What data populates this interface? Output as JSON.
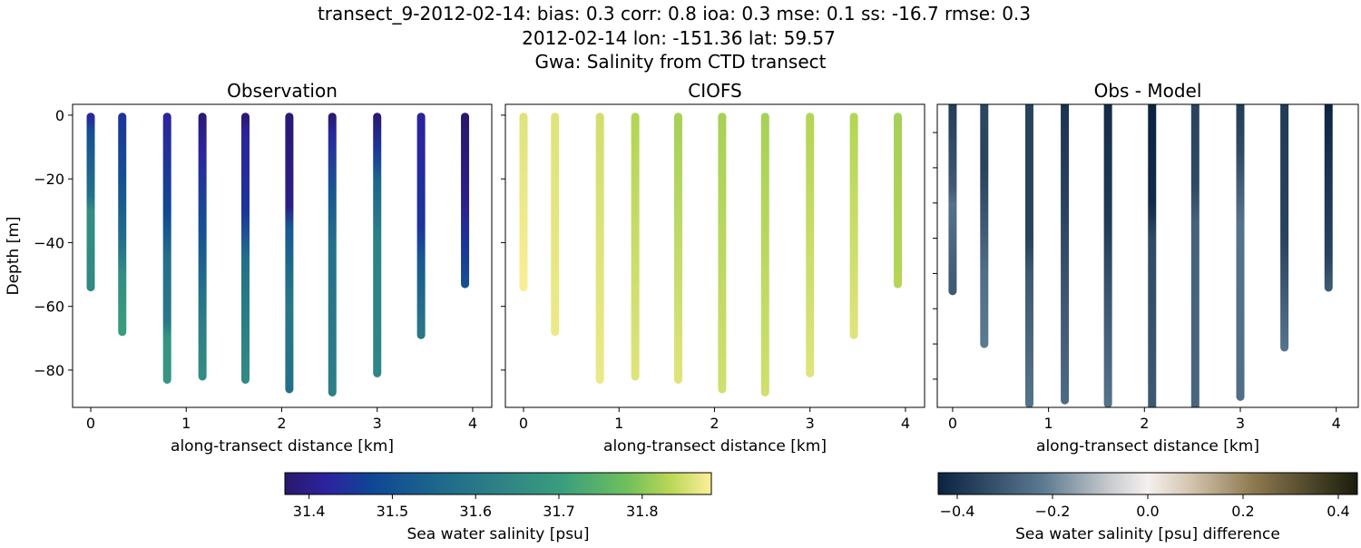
{
  "title_lines": [
    "transect_9-2012-02-14: bias: 0.3  corr: 0.8  ioa: 0.3  mse: 0.1  ss: -16.7  rmse: 0.3",
    "2012-02-14 lon: -151.36 lat: 59.57",
    "Gwa: Salinity from CTD transect"
  ],
  "chart_data": [
    {
      "type": "scatter",
      "title": "Observation",
      "xlabel": "along-transect distance [km]",
      "ylabel": "Depth [m]",
      "xlim": [
        -0.19,
        4.2
      ],
      "ylim": [
        -91.7,
        3.4
      ],
      "xticks": [
        0,
        1,
        2,
        3,
        4
      ],
      "yticks": [
        0,
        -20,
        -40,
        -60,
        -80
      ],
      "colormap": "haline",
      "stations": [
        {
          "x": 0.0,
          "max_depth": 54,
          "profile": [
            [
              0,
              31.43
            ],
            [
              5,
              31.5
            ],
            [
              25,
              31.58
            ],
            [
              30,
              31.66
            ],
            [
              54,
              31.65
            ]
          ]
        },
        {
          "x": 0.33,
          "max_depth": 68,
          "profile": [
            [
              0,
              31.45
            ],
            [
              20,
              31.5
            ],
            [
              40,
              31.58
            ],
            [
              50,
              31.66
            ],
            [
              68,
              31.7
            ]
          ]
        },
        {
          "x": 0.8,
          "max_depth": 83,
          "profile": [
            [
              0,
              31.42
            ],
            [
              30,
              31.48
            ],
            [
              45,
              31.58
            ],
            [
              65,
              31.6
            ],
            [
              70,
              31.68
            ],
            [
              83,
              31.68
            ]
          ]
        },
        {
          "x": 1.17,
          "max_depth": 82,
          "profile": [
            [
              0,
              31.38
            ],
            [
              10,
              31.42
            ],
            [
              35,
              31.5
            ],
            [
              60,
              31.6
            ],
            [
              82,
              31.66
            ]
          ]
        },
        {
          "x": 1.62,
          "max_depth": 83,
          "profile": [
            [
              0,
              31.38
            ],
            [
              5,
              31.42
            ],
            [
              30,
              31.45
            ],
            [
              45,
              31.58
            ],
            [
              83,
              31.65
            ]
          ]
        },
        {
          "x": 2.08,
          "max_depth": 86,
          "profile": [
            [
              0,
              31.38
            ],
            [
              28,
              31.4
            ],
            [
              35,
              31.52
            ],
            [
              60,
              31.6
            ],
            [
              86,
              31.58
            ]
          ]
        },
        {
          "x": 2.53,
          "max_depth": 87,
          "profile": [
            [
              0,
              31.38
            ],
            [
              5,
              31.43
            ],
            [
              25,
              31.52
            ],
            [
              40,
              31.58
            ],
            [
              87,
              31.62
            ]
          ]
        },
        {
          "x": 3.0,
          "max_depth": 81,
          "profile": [
            [
              0,
              31.38
            ],
            [
              10,
              31.45
            ],
            [
              20,
              31.55
            ],
            [
              40,
              31.63
            ],
            [
              81,
              31.64
            ]
          ]
        },
        {
          "x": 3.46,
          "max_depth": 69,
          "profile": [
            [
              0,
              31.42
            ],
            [
              35,
              31.45
            ],
            [
              45,
              31.52
            ],
            [
              69,
              31.6
            ]
          ]
        },
        {
          "x": 3.92,
          "max_depth": 53,
          "profile": [
            [
              0,
              31.37
            ],
            [
              25,
              31.4
            ],
            [
              40,
              31.45
            ],
            [
              53,
              31.5
            ]
          ]
        }
      ]
    },
    {
      "type": "scatter",
      "title": "CIOFS",
      "xlabel": "along-transect distance [km]",
      "xlim": [
        -0.19,
        4.2
      ],
      "ylim": [
        -91.7,
        3.4
      ],
      "xticks": [
        0,
        1,
        2,
        3,
        4
      ],
      "colormap": "haline",
      "stations": [
        {
          "x": 0.0,
          "max_depth": 54,
          "profile": [
            [
              0,
              31.86
            ],
            [
              54,
              31.88
            ]
          ]
        },
        {
          "x": 0.33,
          "max_depth": 68,
          "profile": [
            [
              0,
              31.86
            ],
            [
              68,
              31.87
            ]
          ]
        },
        {
          "x": 0.8,
          "max_depth": 83,
          "profile": [
            [
              0,
              31.85
            ],
            [
              83,
              31.87
            ]
          ]
        },
        {
          "x": 1.17,
          "max_depth": 82,
          "profile": [
            [
              0,
              31.83
            ],
            [
              82,
              31.86
            ]
          ]
        },
        {
          "x": 1.62,
          "max_depth": 83,
          "profile": [
            [
              0,
              31.82
            ],
            [
              83,
              31.86
            ]
          ]
        },
        {
          "x": 2.08,
          "max_depth": 86,
          "profile": [
            [
              0,
              31.82
            ],
            [
              86,
              31.85
            ]
          ]
        },
        {
          "x": 2.53,
          "max_depth": 87,
          "profile": [
            [
              0,
              31.82
            ],
            [
              87,
              31.85
            ]
          ]
        },
        {
          "x": 3.0,
          "max_depth": 81,
          "profile": [
            [
              0,
              31.83
            ],
            [
              81,
              31.86
            ]
          ]
        },
        {
          "x": 3.46,
          "max_depth": 69,
          "profile": [
            [
              0,
              31.83
            ],
            [
              69,
              31.86
            ]
          ]
        },
        {
          "x": 3.92,
          "max_depth": 53,
          "profile": [
            [
              0,
              31.82
            ],
            [
              53,
              31.83
            ]
          ]
        }
      ]
    },
    {
      "type": "scatter",
      "title": "Obs - Model",
      "xlabel": "along-transect distance [km]",
      "xlim": [
        -0.16,
        4.23
      ],
      "ylim": [
        -88,
        -2
      ],
      "xticks": [
        0,
        1,
        2,
        3,
        4
      ],
      "colormap": "diff",
      "stations": [
        {
          "x": 0.0,
          "max_depth": 55,
          "profile": [
            [
              0,
              -0.38
            ],
            [
              25,
              -0.3
            ],
            [
              30,
              -0.24
            ],
            [
              55,
              -0.3
            ]
          ]
        },
        {
          "x": 0.33,
          "max_depth": 70,
          "profile": [
            [
              0,
              -0.35
            ],
            [
              20,
              -0.36
            ],
            [
              50,
              -0.25
            ],
            [
              70,
              -0.22
            ]
          ]
        },
        {
          "x": 0.8,
          "max_depth": 87,
          "profile": [
            [
              0,
              -0.36
            ],
            [
              40,
              -0.36
            ],
            [
              50,
              -0.3
            ],
            [
              87,
              -0.24
            ]
          ]
        },
        {
          "x": 1.17,
          "max_depth": 86,
          "profile": [
            [
              0,
              -0.4
            ],
            [
              30,
              -0.36
            ],
            [
              60,
              -0.3
            ],
            [
              86,
              -0.26
            ]
          ]
        },
        {
          "x": 1.62,
          "max_depth": 87,
          "profile": [
            [
              0,
              -0.42
            ],
            [
              35,
              -0.38
            ],
            [
              60,
              -0.3
            ],
            [
              87,
              -0.24
            ]
          ]
        },
        {
          "x": 2.08,
          "max_depth": 91,
          "profile": [
            [
              0,
              -0.44
            ],
            [
              30,
              -0.42
            ],
            [
              40,
              -0.34
            ],
            [
              91,
              -0.3
            ]
          ]
        },
        {
          "x": 2.53,
          "max_depth": 92,
          "profile": [
            [
              0,
              -0.36
            ],
            [
              25,
              -0.34
            ],
            [
              35,
              -0.28
            ],
            [
              92,
              -0.27
            ]
          ]
        },
        {
          "x": 3.0,
          "max_depth": 85,
          "profile": [
            [
              0,
              -0.38
            ],
            [
              15,
              -0.34
            ],
            [
              35,
              -0.24
            ],
            [
              85,
              -0.25
            ]
          ]
        },
        {
          "x": 3.46,
          "max_depth": 71,
          "profile": [
            [
              0,
              -0.38
            ],
            [
              40,
              -0.36
            ],
            [
              60,
              -0.28
            ],
            [
              71,
              -0.24
            ]
          ]
        },
        {
          "x": 3.92,
          "max_depth": 54,
          "profile": [
            [
              0,
              -0.44
            ],
            [
              20,
              -0.4
            ],
            [
              45,
              -0.36
            ],
            [
              54,
              -0.3
            ]
          ]
        }
      ]
    }
  ],
  "colorbars": [
    {
      "label": "Sea water salinity [psu]",
      "range": [
        31.371,
        31.883
      ],
      "ticks": [
        "31.4",
        "31.5",
        "31.6",
        "31.7",
        "31.8"
      ],
      "colormap": "haline"
    },
    {
      "label": "Sea water salinity [psu] difference",
      "range": [
        -0.44,
        0.44
      ],
      "ticks": [
        "−0.4",
        "−0.2",
        "0.0",
        "0.2",
        "0.4"
      ],
      "colormap": "diff"
    }
  ],
  "colormaps": {
    "haline": [
      [
        0,
        "#29186b"
      ],
      [
        0.1,
        "#2c239f"
      ],
      [
        0.2,
        "#0f4595"
      ],
      [
        0.35,
        "#1c668c"
      ],
      [
        0.5,
        "#2e8186"
      ],
      [
        0.65,
        "#399e7d"
      ],
      [
        0.8,
        "#6ebf5c"
      ],
      [
        0.9,
        "#b7d655"
      ],
      [
        1,
        "#fdef9a"
      ]
    ],
    "diff": [
      [
        0,
        "#0b2340"
      ],
      [
        0.25,
        "#5b7a90"
      ],
      [
        0.4,
        "#c3c6cb"
      ],
      [
        0.5,
        "#f5f0ef"
      ],
      [
        0.6,
        "#d4c6b0"
      ],
      [
        0.75,
        "#8e7a50"
      ],
      [
        1,
        "#1a1d0b"
      ]
    ]
  }
}
